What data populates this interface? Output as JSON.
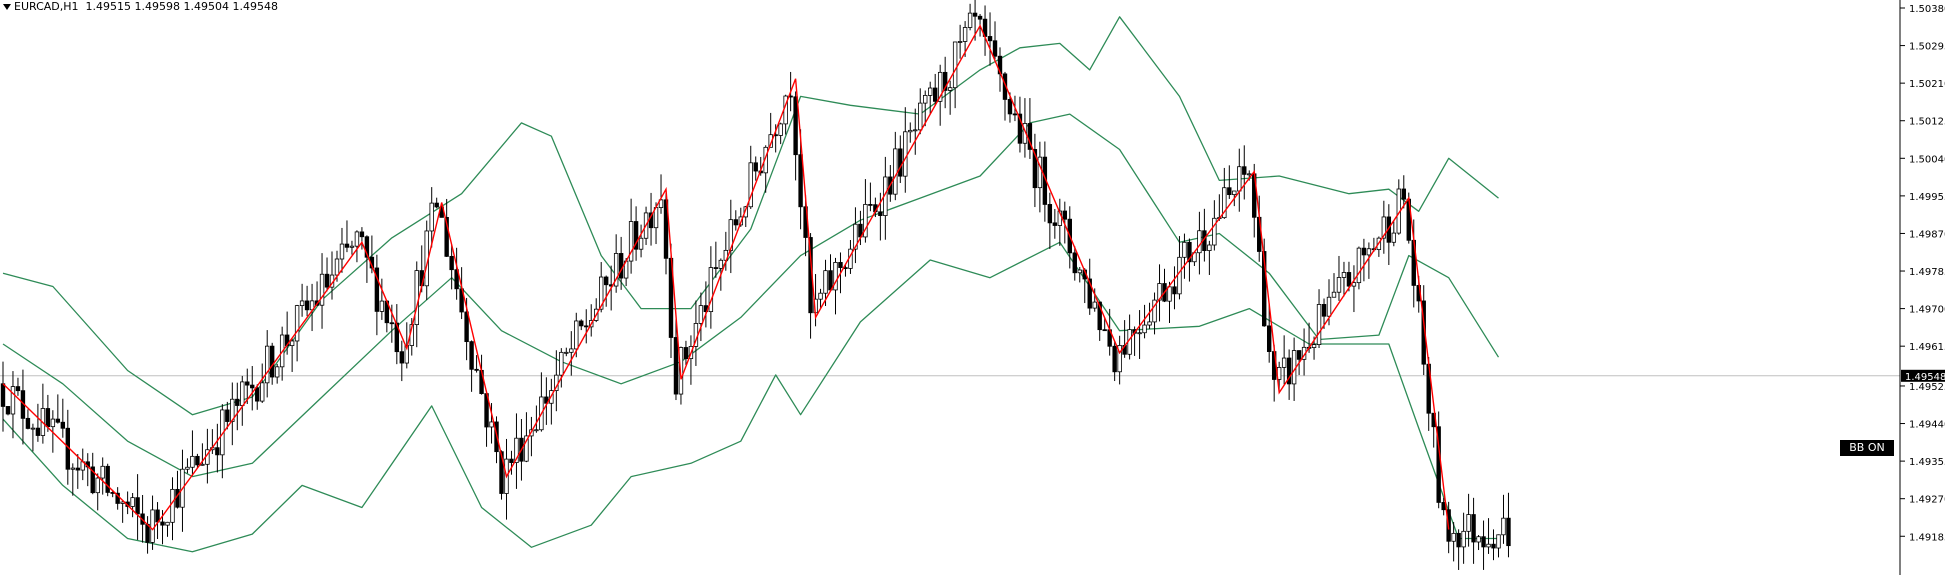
{
  "header": {
    "symbol_timeframe": "EURCAD,H1",
    "ohlc": "1.49515 1.49598 1.49504 1.49548"
  },
  "badge": {
    "label": "BB ON"
  },
  "colors": {
    "bull_candle": "#ffffff",
    "bear_candle": "#000000",
    "zigzag": "#ff0000",
    "bollinger": "#2e8b57",
    "current_price_line": "#c0c0c0",
    "axis": "#000000"
  },
  "chart_data": {
    "type": "candlestick",
    "symbol": "EURCAD",
    "timeframe": "H1",
    "ylim": [
      1.4912,
      1.5038
    ],
    "y_ticks": [
      "1.50380",
      "1.50295",
      "1.50210",
      "1.50125",
      "1.50040",
      "1.49955",
      "1.49870",
      "1.49785",
      "1.49700",
      "1.49615",
      "1.49525",
      "1.49440",
      "1.49355",
      "1.49270",
      "1.49185"
    ],
    "current_price": "1.49548",
    "zigzag": [
      {
        "x": 0,
        "y": 1.4953
      },
      {
        "x": 30,
        "y": 1.492
      },
      {
        "x": 72,
        "y": 1.4985
      },
      {
        "x": 81,
        "y": 1.4961
      },
      {
        "x": 88,
        "y": 1.4994
      },
      {
        "x": 101,
        "y": 1.4932
      },
      {
        "x": 133,
        "y": 1.4997
      },
      {
        "x": 136,
        "y": 1.4954
      },
      {
        "x": 159,
        "y": 1.5022
      },
      {
        "x": 163,
        "y": 1.4968
      },
      {
        "x": 196,
        "y": 1.5034
      },
      {
        "x": 224,
        "y": 1.496
      },
      {
        "x": 251,
        "y": 1.5001
      },
      {
        "x": 256,
        "y": 1.4951
      },
      {
        "x": 282,
        "y": 1.4995
      },
      {
        "x": 290,
        "y": 1.492
      }
    ],
    "bollinger_upper": [
      {
        "x": 0,
        "y": 1.4978
      },
      {
        "x": 10,
        "y": 1.4975
      },
      {
        "x": 25,
        "y": 1.4956
      },
      {
        "x": 38,
        "y": 1.4946
      },
      {
        "x": 50,
        "y": 1.495
      },
      {
        "x": 64,
        "y": 1.4972
      },
      {
        "x": 78,
        "y": 1.4986
      },
      {
        "x": 92,
        "y": 1.4996
      },
      {
        "x": 104,
        "y": 1.5012
      },
      {
        "x": 110,
        "y": 1.5009
      },
      {
        "x": 120,
        "y": 1.4982
      },
      {
        "x": 128,
        "y": 1.497
      },
      {
        "x": 138,
        "y": 1.497
      },
      {
        "x": 150,
        "y": 1.4988
      },
      {
        "x": 160,
        "y": 1.5018
      },
      {
        "x": 170,
        "y": 1.5016
      },
      {
        "x": 184,
        "y": 1.5014
      },
      {
        "x": 196,
        "y": 1.5024
      },
      {
        "x": 204,
        "y": 1.5029
      },
      {
        "x": 212,
        "y": 1.503
      },
      {
        "x": 218,
        "y": 1.5024
      },
      {
        "x": 224,
        "y": 1.5036
      },
      {
        "x": 236,
        "y": 1.5018
      },
      {
        "x": 244,
        "y": 1.4999
      },
      {
        "x": 256,
        "y": 1.5
      },
      {
        "x": 270,
        "y": 1.4996
      },
      {
        "x": 278,
        "y": 1.4997
      },
      {
        "x": 284,
        "y": 1.4992
      },
      {
        "x": 290,
        "y": 1.5004
      },
      {
        "x": 300,
        "y": 1.4995
      }
    ],
    "bollinger_middle": [
      {
        "x": 0,
        "y": 1.4962
      },
      {
        "x": 12,
        "y": 1.4953
      },
      {
        "x": 25,
        "y": 1.494
      },
      {
        "x": 38,
        "y": 1.4932
      },
      {
        "x": 50,
        "y": 1.4935
      },
      {
        "x": 64,
        "y": 1.495
      },
      {
        "x": 78,
        "y": 1.4965
      },
      {
        "x": 90,
        "y": 1.4977
      },
      {
        "x": 100,
        "y": 1.4965
      },
      {
        "x": 112,
        "y": 1.4958
      },
      {
        "x": 124,
        "y": 1.4953
      },
      {
        "x": 136,
        "y": 1.4958
      },
      {
        "x": 148,
        "y": 1.4968
      },
      {
        "x": 160,
        "y": 1.4982
      },
      {
        "x": 172,
        "y": 1.499
      },
      {
        "x": 184,
        "y": 1.4995
      },
      {
        "x": 196,
        "y": 1.5
      },
      {
        "x": 206,
        "y": 1.5012
      },
      {
        "x": 214,
        "y": 1.5014
      },
      {
        "x": 224,
        "y": 1.5006
      },
      {
        "x": 236,
        "y": 1.4985
      },
      {
        "x": 244,
        "y": 1.4987
      },
      {
        "x": 254,
        "y": 1.4978
      },
      {
        "x": 264,
        "y": 1.4963
      },
      {
        "x": 276,
        "y": 1.4964
      },
      {
        "x": 282,
        "y": 1.4982
      },
      {
        "x": 290,
        "y": 1.4977
      },
      {
        "x": 300,
        "y": 1.4959
      }
    ],
    "bollinger_lower": [
      {
        "x": 0,
        "y": 1.4945
      },
      {
        "x": 12,
        "y": 1.493
      },
      {
        "x": 25,
        "y": 1.4918
      },
      {
        "x": 38,
        "y": 1.4915
      },
      {
        "x": 50,
        "y": 1.4919
      },
      {
        "x": 60,
        "y": 1.493
      },
      {
        "x": 72,
        "y": 1.4925
      },
      {
        "x": 86,
        "y": 1.4948
      },
      {
        "x": 96,
        "y": 1.4925
      },
      {
        "x": 106,
        "y": 1.4916
      },
      {
        "x": 118,
        "y": 1.4921
      },
      {
        "x": 126,
        "y": 1.4932
      },
      {
        "x": 138,
        "y": 1.4935
      },
      {
        "x": 148,
        "y": 1.494
      },
      {
        "x": 155,
        "y": 1.4955
      },
      {
        "x": 160,
        "y": 1.4946
      },
      {
        "x": 172,
        "y": 1.4967
      },
      {
        "x": 186,
        "y": 1.4981
      },
      {
        "x": 198,
        "y": 1.4977
      },
      {
        "x": 212,
        "y": 1.4985
      },
      {
        "x": 224,
        "y": 1.4965
      },
      {
        "x": 240,
        "y": 1.4966
      },
      {
        "x": 250,
        "y": 1.497
      },
      {
        "x": 262,
        "y": 1.4962
      },
      {
        "x": 278,
        "y": 1.4962
      },
      {
        "x": 284,
        "y": 1.4943
      },
      {
        "x": 292,
        "y": 1.4918
      },
      {
        "x": 300,
        "y": 1.4918
      }
    ]
  }
}
